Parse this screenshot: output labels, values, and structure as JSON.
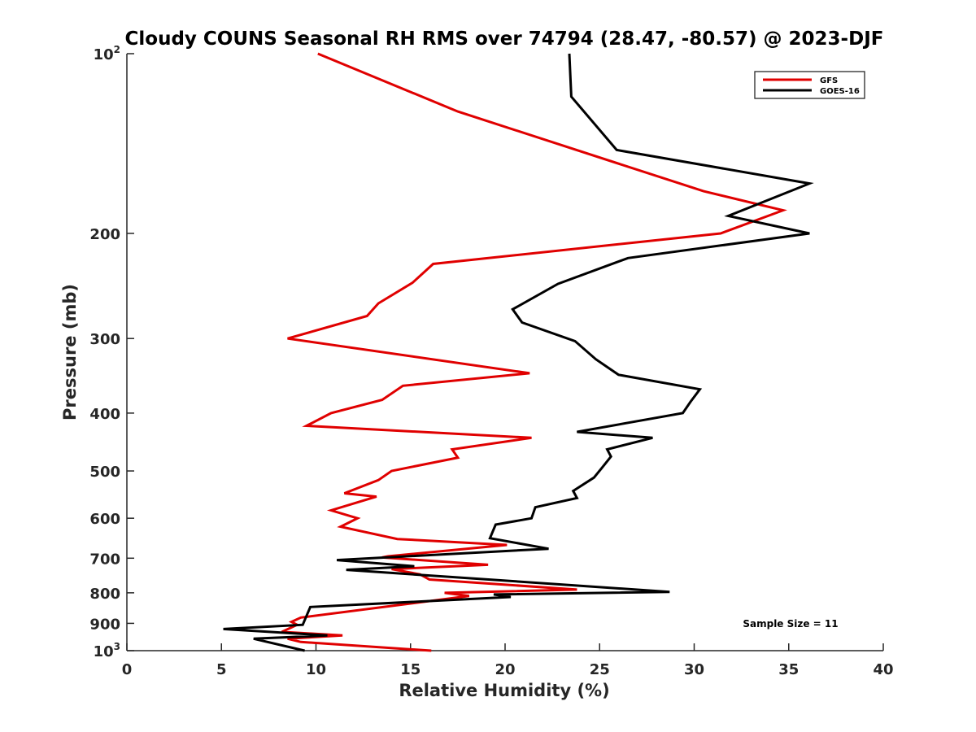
{
  "chart_data": {
    "type": "line",
    "title": "Cloudy COUNS Seasonal RH RMS over 74794 (28.47, -80.57) @ 2023-DJF",
    "xlabel": "Relative Humidity (%)",
    "ylabel": "Pressure (mb)",
    "xlim": [
      0,
      40
    ],
    "ylim": [
      100,
      1000
    ],
    "yscale": "log",
    "y_reversed": true,
    "grid": false,
    "legend_position": "top-right",
    "x_ticks": [
      "0",
      "5",
      "10",
      "15",
      "20",
      "25",
      "30",
      "35",
      "40"
    ],
    "x_tick_values": [
      0,
      5,
      10,
      15,
      20,
      25,
      30,
      35,
      40
    ],
    "y_ticks": [
      {
        "value": 100,
        "base": "10",
        "exp": "2"
      },
      {
        "value": 200,
        "label": "200"
      },
      {
        "value": 300,
        "label": "300"
      },
      {
        "value": 400,
        "label": "400"
      },
      {
        "value": 500,
        "label": "500"
      },
      {
        "value": 600,
        "label": "600"
      },
      {
        "value": 700,
        "label": "700"
      },
      {
        "value": 800,
        "label": "800"
      },
      {
        "value": 900,
        "label": "900"
      },
      {
        "value": 1000,
        "base": "10",
        "exp": "3"
      }
    ],
    "annotation": "Sample Size = 11",
    "series": [
      {
        "name": "GFS",
        "color": "#e00000",
        "points": [
          [
            10.1,
            100
          ],
          [
            17.5,
            125
          ],
          [
            30.5,
            170
          ],
          [
            34.7,
            183
          ],
          [
            31.4,
            200
          ],
          [
            16.2,
            225
          ],
          [
            15.1,
            242
          ],
          [
            13.3,
            262
          ],
          [
            12.7,
            275
          ],
          [
            8.5,
            300
          ],
          [
            21.3,
            343
          ],
          [
            14.6,
            360
          ],
          [
            13.5,
            380
          ],
          [
            10.8,
            400
          ],
          [
            9.5,
            420
          ],
          [
            21.4,
            440
          ],
          [
            17.2,
            460
          ],
          [
            17.5,
            475
          ],
          [
            14.0,
            500
          ],
          [
            13.3,
            518
          ],
          [
            11.5,
            545
          ],
          [
            13.2,
            552
          ],
          [
            10.8,
            582
          ],
          [
            12.2,
            600
          ],
          [
            11.3,
            620
          ],
          [
            14.3,
            650
          ],
          [
            20.1,
            665
          ],
          [
            13.8,
            695
          ],
          [
            13.5,
            698
          ],
          [
            19.1,
            718
          ],
          [
            14.0,
            730
          ],
          [
            15.5,
            745
          ],
          [
            16.0,
            760
          ],
          [
            23.8,
            790
          ],
          [
            16.8,
            800
          ],
          [
            18.1,
            810
          ],
          [
            9.2,
            880
          ],
          [
            8.7,
            895
          ],
          [
            9.0,
            905
          ],
          [
            8.2,
            930
          ],
          [
            11.4,
            943
          ],
          [
            8.5,
            955
          ],
          [
            9.2,
            967
          ],
          [
            16.1,
            1000
          ]
        ]
      },
      {
        "name": "GOES-16",
        "color": "#000000",
        "points": [
          [
            23.4,
            100
          ],
          [
            23.5,
            118
          ],
          [
            25.9,
            145
          ],
          [
            36.1,
            165
          ],
          [
            31.8,
            187
          ],
          [
            36.1,
            200
          ],
          [
            26.5,
            220
          ],
          [
            22.8,
            243
          ],
          [
            20.4,
            268
          ],
          [
            20.9,
            282
          ],
          [
            23.7,
            303
          ],
          [
            24.8,
            325
          ],
          [
            26.0,
            345
          ],
          [
            30.3,
            365
          ],
          [
            29.8,
            383
          ],
          [
            29.4,
            400
          ],
          [
            23.8,
            430
          ],
          [
            27.8,
            440
          ],
          [
            25.4,
            460
          ],
          [
            25.6,
            473
          ],
          [
            25.1,
            495
          ],
          [
            24.7,
            513
          ],
          [
            23.6,
            540
          ],
          [
            23.8,
            555
          ],
          [
            21.6,
            575
          ],
          [
            21.4,
            600
          ],
          [
            19.5,
            615
          ],
          [
            19.2,
            648
          ],
          [
            22.3,
            675
          ],
          [
            11.1,
            705
          ],
          [
            15.2,
            722
          ],
          [
            11.6,
            732
          ],
          [
            28.7,
            797
          ],
          [
            19.4,
            805
          ],
          [
            20.3,
            813
          ],
          [
            9.7,
            845
          ],
          [
            9.3,
            905
          ],
          [
            5.1,
            920
          ],
          [
            10.6,
            943
          ],
          [
            6.7,
            955
          ],
          [
            9.4,
            1000
          ]
        ]
      }
    ]
  }
}
